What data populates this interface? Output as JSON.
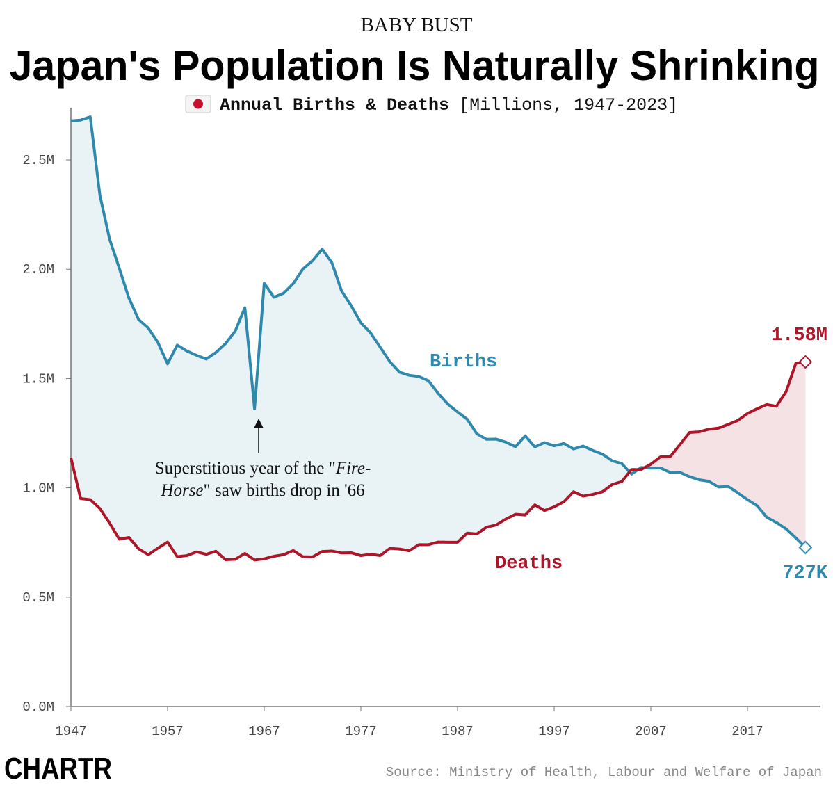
{
  "header": {
    "kicker": "BABY BUST",
    "title": "Japan's Population Is Naturally Shrinking",
    "subtitle_bold": "Annual Births & Deaths",
    "subtitle_light": "[Millions, 1947-2023]",
    "flag_icon": "japan-flag-icon"
  },
  "footer": {
    "logo": "CHARTR",
    "source": "Source: Ministry of Health, Labour and Welfare of Japan"
  },
  "colors": {
    "births": "#2f89ad",
    "deaths": "#ad1528",
    "births_fill": "#e9f2f5",
    "deaths_fill": "#f5e2e5"
  },
  "chart_data": {
    "type": "line",
    "title": "Annual Births & Deaths",
    "ylabel": "",
    "xlabel": "",
    "ylim": [
      0,
      2.75
    ],
    "xlim": [
      1947,
      2024
    ],
    "y_ticks": [
      0,
      0.5,
      1.0,
      1.5,
      2.0,
      2.5
    ],
    "y_tick_labels": [
      "0.0M",
      "0.5M",
      "1.0M",
      "1.5M",
      "2.0M",
      "2.5M"
    ],
    "x_ticks": [
      1947,
      1957,
      1967,
      1977,
      1987,
      1997,
      2007,
      2017
    ],
    "x_tick_labels": [
      "1947",
      "1957",
      "1967",
      "1977",
      "1987",
      "1997",
      "2007",
      "2017"
    ],
    "grid": false,
    "legend": "direct labels",
    "x_start": 1947,
    "series": [
      {
        "name": "Births",
        "end_label": "727K",
        "values": [
          2.679,
          2.682,
          2.697,
          2.338,
          2.138,
          2.005,
          1.868,
          1.77,
          1.731,
          1.665,
          1.567,
          1.653,
          1.626,
          1.606,
          1.589,
          1.619,
          1.66,
          1.717,
          1.824,
          1.361,
          1.936,
          1.872,
          1.89,
          1.934,
          2.001,
          2.039,
          2.092,
          2.03,
          1.901,
          1.833,
          1.755,
          1.709,
          1.643,
          1.577,
          1.529,
          1.515,
          1.509,
          1.49,
          1.432,
          1.383,
          1.347,
          1.314,
          1.247,
          1.222,
          1.223,
          1.209,
          1.188,
          1.238,
          1.187,
          1.207,
          1.192,
          1.203,
          1.178,
          1.191,
          1.171,
          1.154,
          1.124,
          1.111,
          1.063,
          1.093,
          1.09,
          1.091,
          1.07,
          1.071,
          1.051,
          1.037,
          1.03,
          1.004,
          1.006,
          0.977,
          0.946,
          0.918,
          0.865,
          0.841,
          0.812,
          0.771,
          0.727
        ]
      },
      {
        "name": "Deaths",
        "end_label": "1.58M",
        "values": [
          1.138,
          0.951,
          0.946,
          0.905,
          0.839,
          0.765,
          0.773,
          0.721,
          0.694,
          0.724,
          0.752,
          0.685,
          0.69,
          0.707,
          0.696,
          0.71,
          0.671,
          0.673,
          0.7,
          0.67,
          0.675,
          0.687,
          0.694,
          0.713,
          0.685,
          0.684,
          0.709,
          0.711,
          0.702,
          0.703,
          0.69,
          0.696,
          0.69,
          0.723,
          0.72,
          0.712,
          0.74,
          0.74,
          0.752,
          0.751,
          0.751,
          0.793,
          0.789,
          0.82,
          0.83,
          0.857,
          0.879,
          0.876,
          0.922,
          0.896,
          0.913,
          0.936,
          0.982,
          0.962,
          0.97,
          0.982,
          1.015,
          1.029,
          1.084,
          1.084,
          1.108,
          1.142,
          1.142,
          1.197,
          1.253,
          1.256,
          1.268,
          1.273,
          1.29,
          1.308,
          1.34,
          1.362,
          1.381,
          1.373,
          1.44,
          1.569,
          1.576
        ]
      }
    ],
    "annotation": {
      "year": 1966,
      "line1_pre": "Superstitious year of the \"",
      "line1_italic": "Fire-",
      "line2_italic": "Horse",
      "line2_post": "\" saw births drop in '66"
    }
  }
}
